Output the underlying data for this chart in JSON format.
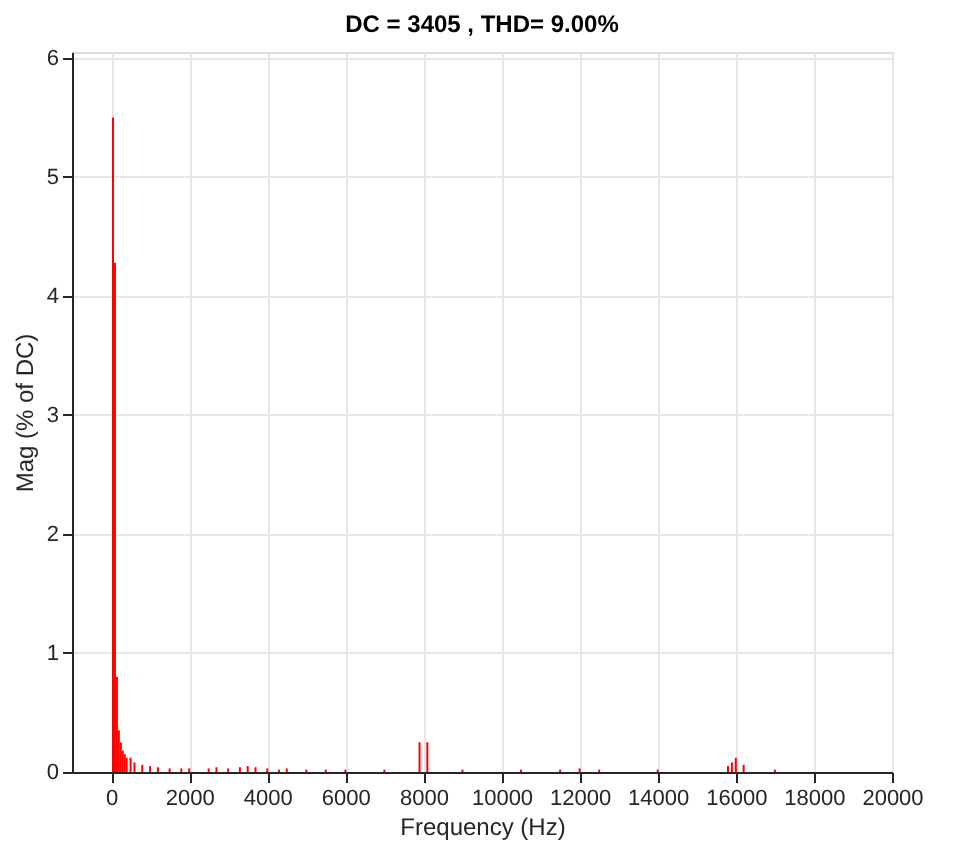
{
  "chart_data": {
    "type": "bar",
    "title": "DC = 3405 , THD= 9.00%",
    "xlabel": "Frequency (Hz)",
    "ylabel": "Mag (% of DC)",
    "x": [
      50,
      100,
      150,
      200,
      250,
      300,
      350,
      400,
      500,
      600,
      800,
      1000,
      1200,
      1500,
      1800,
      2000,
      2500,
      2700,
      3000,
      3300,
      3500,
      3700,
      4000,
      4300,
      4500,
      5000,
      5500,
      6000,
      7000,
      7900,
      8100,
      9000,
      10500,
      11500,
      12000,
      12500,
      14000,
      15800,
      15900,
      16000,
      16200,
      17000
    ],
    "series": [
      {
        "color": "#ff0000",
        "values": [
          5.5,
          4.28,
          0.8,
          0.35,
          0.25,
          0.18,
          0.15,
          0.12,
          0.12,
          0.08,
          0.06,
          0.05,
          0.04,
          0.03,
          0.03,
          0.03,
          0.03,
          0.04,
          0.03,
          0.04,
          0.05,
          0.04,
          0.03,
          0.02,
          0.03,
          0.02,
          0.02,
          0.02,
          0.02,
          0.25,
          0.25,
          0.02,
          0.02,
          0.02,
          0.03,
          0.02,
          0.02,
          0.05,
          0.08,
          0.12,
          0.06,
          0.02
        ]
      }
    ],
    "xlim": [
      -1000,
      20000
    ],
    "xticks": [
      0,
      2000,
      4000,
      6000,
      8000,
      10000,
      12000,
      14000,
      16000,
      18000,
      20000
    ],
    "ylim": [
      0,
      6.05
    ],
    "yticks": [
      0,
      1,
      2,
      3,
      4,
      5,
      6
    ],
    "grid": true
  }
}
